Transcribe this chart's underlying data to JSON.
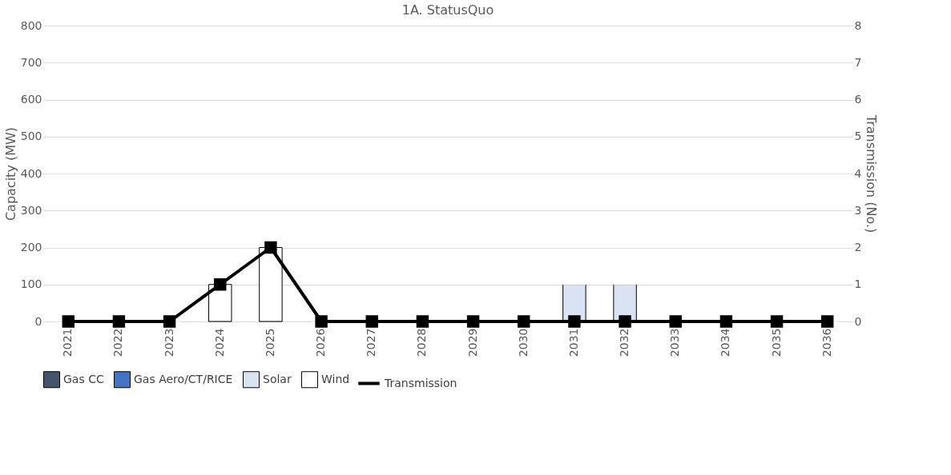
{
  "chart_data": {
    "type": "bar",
    "title": "1A. StatusQuo",
    "ylabel": "Capacity (MW)",
    "y2label": "Transmission (No.)",
    "stacked": true,
    "categories": [
      "2021",
      "2022",
      "2023",
      "2024",
      "2025",
      "2026",
      "2027",
      "2028",
      "2029",
      "2030",
      "2031",
      "2032",
      "2033",
      "2034",
      "2035",
      "2036"
    ],
    "series": [
      {
        "name": "Gas CC",
        "color": "#44546a",
        "values": [
          0,
          0,
          0,
          0,
          0,
          0,
          0,
          0,
          0,
          0,
          0,
          0,
          0,
          0,
          0,
          0
        ]
      },
      {
        "name": "Gas Aero/CT/RICE",
        "color": "#4472c4",
        "values": [
          0,
          0,
          0,
          0,
          0,
          0,
          0,
          0,
          0,
          0,
          0,
          0,
          0,
          0,
          0,
          0
        ]
      },
      {
        "name": "Solar",
        "color": "#dae3f3",
        "values": [
          0,
          0,
          0,
          0,
          0,
          0,
          0,
          0,
          0,
          0,
          100,
          100,
          0,
          0,
          0,
          0
        ]
      },
      {
        "name": "Wind",
        "color": "#ffffff",
        "values": [
          0,
          0,
          0,
          100,
          200,
          0,
          0,
          0,
          0,
          0,
          0,
          0,
          0,
          0,
          0,
          0
        ]
      },
      {
        "name": "Transmission",
        "color": "#000000",
        "type": "line",
        "axis": "y2",
        "marker": "square",
        "line_style": "solid",
        "values": [
          0,
          0,
          0,
          1,
          2,
          0,
          0,
          0,
          0,
          0,
          0,
          0,
          0,
          0,
          0,
          0
        ]
      }
    ],
    "ylim": [
      0,
      800
    ],
    "yticks": [
      0,
      100,
      200,
      300,
      400,
      500,
      600,
      700,
      800
    ],
    "y2lim": [
      0,
      8
    ],
    "y2ticks": [
      0,
      1,
      2,
      3,
      4,
      5,
      6,
      7,
      8
    ],
    "grid": "y",
    "legend": "bottom"
  }
}
